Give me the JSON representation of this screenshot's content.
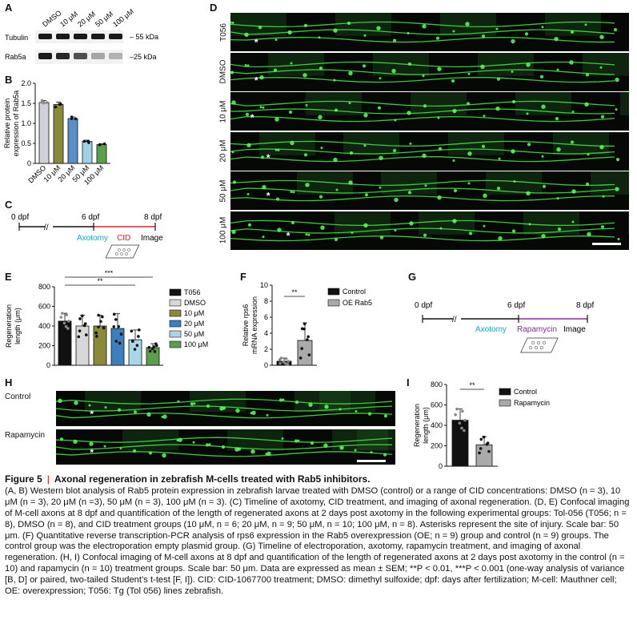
{
  "panels": {
    "a": {
      "label": "A",
      "lanes": [
        "DMSO",
        "10 μM",
        "20 μM",
        "50 μM",
        "100 μM"
      ],
      "rows": [
        "Tubulin",
        "Rab5a"
      ],
      "markers": [
        "– 55 kDa",
        "–25 kDa"
      ],
      "rab5a_band_intensity": [
        1.0,
        0.95,
        0.75,
        0.35,
        0.3
      ]
    },
    "b": {
      "label": "B"
    },
    "c": {
      "label": "C",
      "t0": "0 dpf",
      "t1": "6 dpf",
      "t2": "8 dpf",
      "e1": "Axotomy",
      "e2": "CID",
      "e3": "Image"
    },
    "d": {
      "label": "D",
      "rows": [
        "T056",
        "DMSO",
        "10 μM",
        "20 μM",
        "50 μM",
        "100 μM"
      ],
      "star": "*"
    },
    "e": {
      "label": "E"
    },
    "f": {
      "label": "F"
    },
    "g": {
      "label": "G",
      "t0": "0 dpf",
      "t1": "6 dpf",
      "t2": "8 dpf",
      "e1": "Axotomy",
      "e2": "Rapamycin",
      "e3": "Image"
    },
    "h": {
      "label": "H",
      "rows": [
        "Control",
        "Rapamycin"
      ],
      "star": "*"
    },
    "i": {
      "label": "I"
    }
  },
  "chart_data": [
    {
      "panel": "B",
      "type": "bar",
      "categories": [
        "DMSO",
        "10 μM",
        "20 μM",
        "50 μM",
        "100 μM"
      ],
      "values": [
        1.52,
        1.47,
        1.12,
        0.55,
        0.47
      ],
      "errors": [
        0.05,
        0.06,
        0.04,
        0.03,
        0.02
      ],
      "ylabel": "Relative protein expression of Rab5a",
      "ylim": [
        0,
        2.0
      ],
      "yticks": [
        "0",
        "0.5",
        "1.0",
        "1.5",
        "2.0"
      ],
      "colors": [
        "#d0d0d8",
        "#8a8a3a",
        "#5a8fc8",
        "#9fd0e8",
        "#5aa04a"
      ]
    },
    {
      "panel": "E",
      "type": "bar",
      "categories": [
        "T056",
        "DMSO",
        "10 μM",
        "20 μM",
        "50 μM",
        "100 μM"
      ],
      "values": [
        450,
        400,
        400,
        375,
        260,
        180
      ],
      "errors": [
        80,
        110,
        110,
        150,
        100,
        40
      ],
      "ylabel": "Regeneration length (μm)",
      "ylim": [
        0,
        800
      ],
      "yticks": [
        "0",
        "200",
        "400",
        "600",
        "800"
      ],
      "legend": [
        "T056",
        "DMSO",
        "10 μM",
        "20 μM",
        "50 μM",
        "100 μM"
      ],
      "colors": [
        "#111111",
        "#d8d8d8",
        "#8a8a3a",
        "#3a7fc0",
        "#a8d8e8",
        "#5aa04a"
      ],
      "significance": [
        {
          "from": 0,
          "to": 5,
          "label": "***"
        },
        {
          "from": 0,
          "to": 4,
          "label": "**"
        }
      ]
    },
    {
      "panel": "F",
      "type": "bar",
      "categories": [
        "Control",
        "OE Rab5"
      ],
      "values": [
        0.5,
        3.1
      ],
      "errors": [
        0.4,
        2.2
      ],
      "ylabel": "Relative rps6 mRNA expression",
      "ylim": [
        0,
        10
      ],
      "yticks": [
        "0",
        "2",
        "4",
        "6",
        "8",
        "10"
      ],
      "legend": [
        "Control",
        "OE Rab5"
      ],
      "colors": [
        "#111111",
        "#aaaaaa"
      ],
      "significance": [
        {
          "from": 0,
          "to": 1,
          "label": "**"
        }
      ]
    },
    {
      "panel": "I",
      "type": "bar",
      "categories": [
        "Control",
        "Rapamycin"
      ],
      "values": [
        450,
        210
      ],
      "errors": [
        110,
        80
      ],
      "ylabel": "Regeneration length (μm)",
      "ylim": [
        0,
        800
      ],
      "yticks": [
        "0",
        "200",
        "400",
        "600",
        "800"
      ],
      "legend": [
        "Control",
        "Rapamycin"
      ],
      "colors": [
        "#111111",
        "#aaaaaa"
      ],
      "significance": [
        {
          "from": 0,
          "to": 1,
          "label": "**"
        }
      ]
    }
  ],
  "caption": {
    "title_prefix": "Figure 5",
    "title": "Axonal regeneration in zebrafish M-cells treated with Rab5 inhibitors.",
    "body": "(A, B) Western blot analysis of Rab5 protein expression in zebrafish larvae treated with DMSO (control) or a range of CID concentrations: DMSO (n = 3), 10 μM (n = 3), 20 μM (n =3), 50 μM (n = 3), 100 μM (n = 3). (C) Timeline of axotomy, CID treatment, and imaging of axonal regeneration. (D, E) Confocal imaging of M-cell axons at 8 dpf and quantification of the length of regenerated axons at 2 days post axotomy in the following experimental groups: Tol-056 (T056; n = 8), DMSO (n = 8), and CID treatment groups (10 μM, n = 6; 20 μM, n = 9; 50 μM, n = 10; 100 μM, n = 8). Asterisks represent the site of injury. Scale bar: 50 μm. (F) Quantitative reverse transcription-PCR analysis of rps6 expression in the Rab5 overexpression (OE; n = 9) group and control (n = 9) groups. The control group was the electroporation empty plasmid group. (G) Timeline of electroporation, axotomy, rapamycin treatment, and imaging of axonal regeneration. (H, I) Confocal imaging of M-cell axons at 8 dpf and quantification of the length of regenerated axons at 2 days post axotomy in the control (n = 10) and rapamycin (n = 10) treatment groups. Scale bar: 50 μm. Data are expressed as mean ± SEM; **P < 0.01, ***P < 0.001 (one-way analysis of variance [B, D] or paired, two-tailed Student’s t-test [F, I]). CID: CID-1067700 treatment; DMSO: dimethyl sulfoxide; dpf: days after fertilization; M-cell: Mauthner cell; OE: overexpression; T056: Tg (Tol 056) lines zebrafish."
  }
}
